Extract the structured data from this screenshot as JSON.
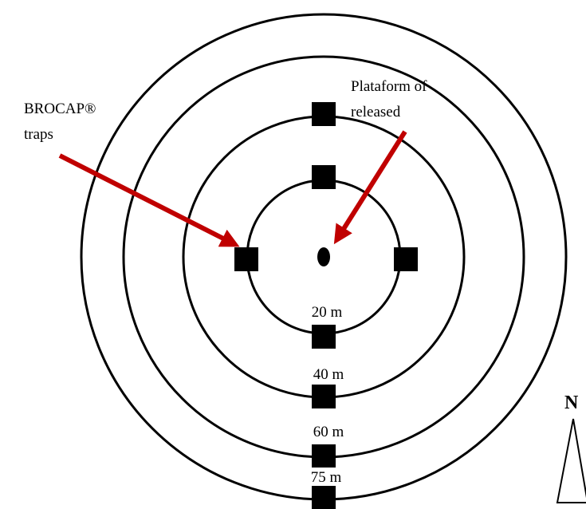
{
  "annotations": {
    "traps": [
      "BROCAP®",
      "traps"
    ],
    "platform": [
      "Plataform of",
      "released"
    ]
  },
  "rings": [
    "20 m",
    "40 m",
    "60 m",
    "75 m"
  ],
  "compass": "N"
}
